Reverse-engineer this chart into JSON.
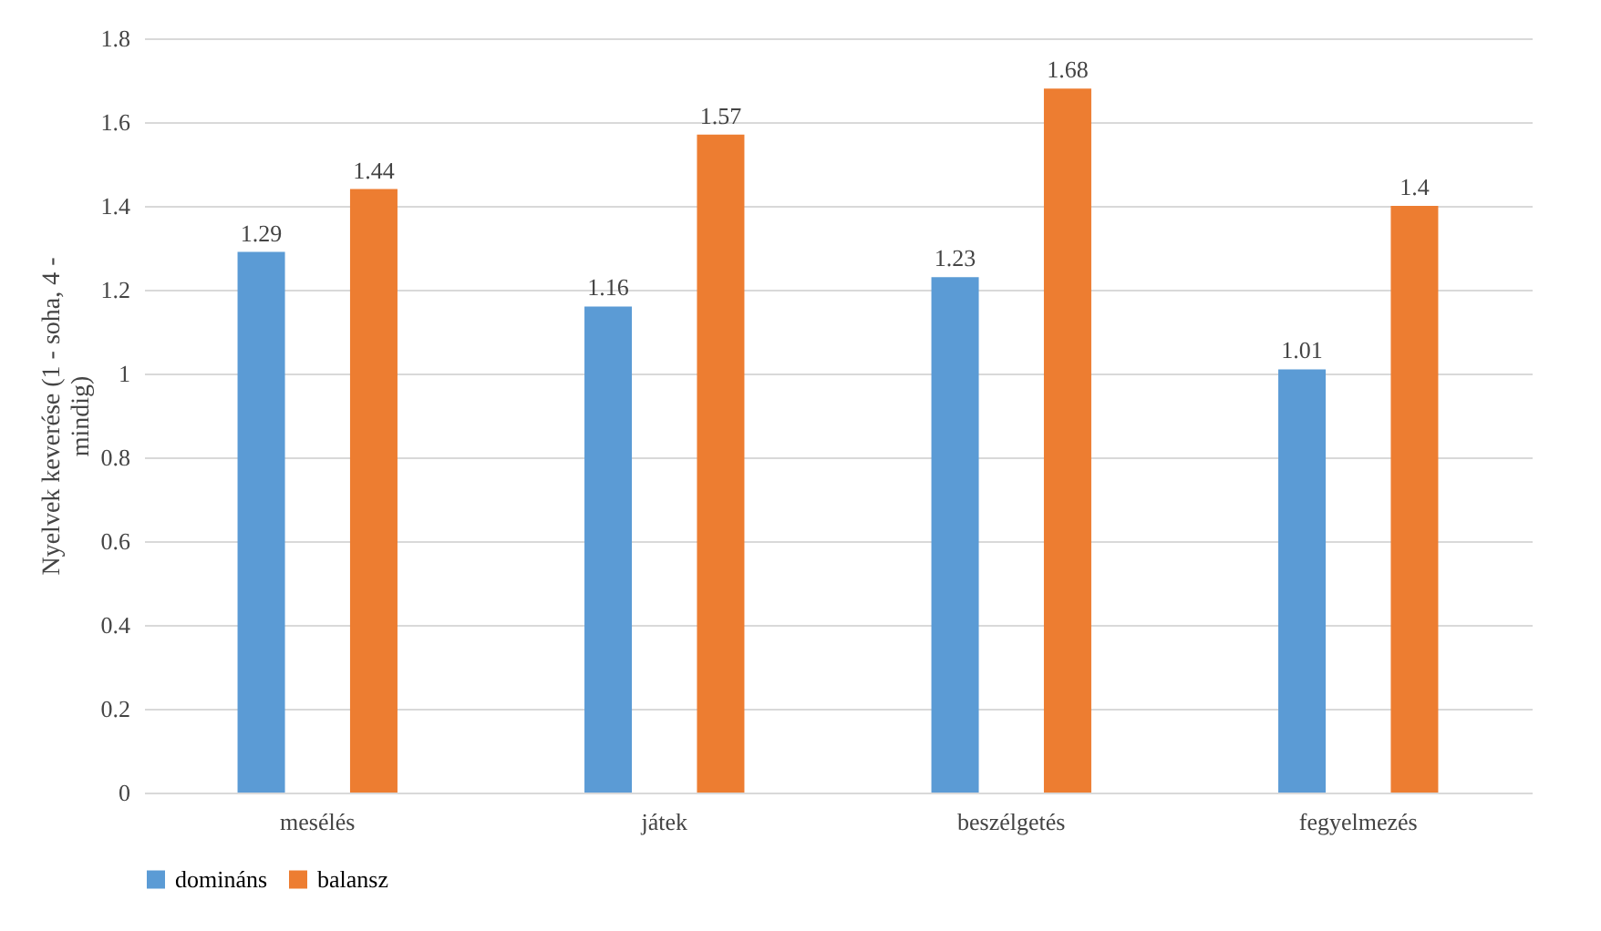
{
  "chart_data": {
    "type": "bar",
    "ylabel": "Nyelvek keverése (1 - soha, 4 - mindig)",
    "categories": [
      "mesélés",
      "játek",
      "beszélgetés",
      "fegyelmezés"
    ],
    "series": [
      {
        "name": "domináns",
        "color": "#5b9bd5",
        "values": [
          1.29,
          1.16,
          1.23,
          1.01
        ]
      },
      {
        "name": "balansz",
        "color": "#ed7d31",
        "values": [
          1.44,
          1.57,
          1.68,
          1.4
        ]
      }
    ],
    "ylim": [
      0,
      1.8
    ],
    "yticks": [
      0,
      0.2,
      0.4,
      0.6,
      0.8,
      1,
      1.2,
      1.4,
      1.6,
      1.8
    ],
    "grid": "y",
    "legend": "bottom",
    "data_labels": true
  }
}
